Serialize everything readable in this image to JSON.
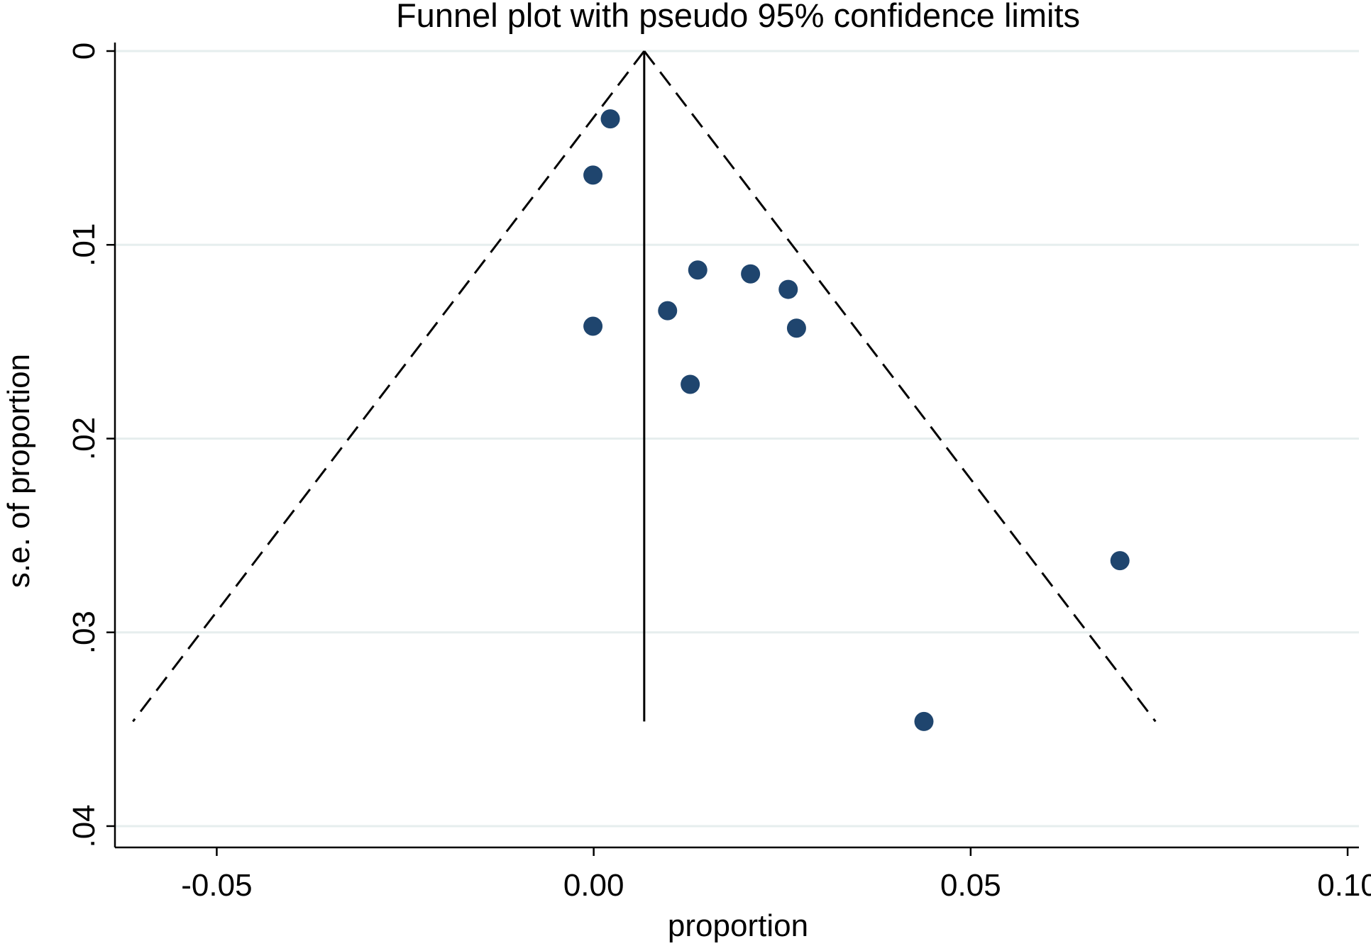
{
  "chart_data": {
    "type": "scatter",
    "title": "Funnel plot with pseudo 95% confidence limits",
    "xlabel": "proportion",
    "ylabel": "s.e. of proportion",
    "xlim": [
      -0.0635,
      0.1015
    ],
    "ylim": [
      0,
      0.0411
    ],
    "y_reversed": true,
    "x_ticks": [
      {
        "value": -0.05,
        "label": "-0.05"
      },
      {
        "value": 0.0,
        "label": "0.00"
      },
      {
        "value": 0.05,
        "label": "0.05"
      },
      {
        "value": 0.1,
        "label": "0.10"
      }
    ],
    "y_ticks": [
      {
        "value": 0,
        "label": "0"
      },
      {
        "value": 0.01,
        "label": ".01"
      },
      {
        "value": 0.02,
        "label": ".02"
      },
      {
        "value": 0.03,
        "label": ".03"
      },
      {
        "value": 0.04,
        "label": ".04"
      }
    ],
    "grid": true,
    "pooled_estimate": 0.0067,
    "funnel_max_se": 0.0346,
    "points": [
      {
        "x": 0.0022,
        "y": 0.0035
      },
      {
        "x": -0.0001,
        "y": 0.0064
      },
      {
        "x": 0.0138,
        "y": 0.0113
      },
      {
        "x": 0.0208,
        "y": 0.0115
      },
      {
        "x": 0.0258,
        "y": 0.0123
      },
      {
        "x": 0.0098,
        "y": 0.0134
      },
      {
        "x": -0.0001,
        "y": 0.0142
      },
      {
        "x": 0.0269,
        "y": 0.0143
      },
      {
        "x": 0.0128,
        "y": 0.0172
      },
      {
        "x": 0.0698,
        "y": 0.0263
      },
      {
        "x": 0.0438,
        "y": 0.0346
      }
    ]
  }
}
